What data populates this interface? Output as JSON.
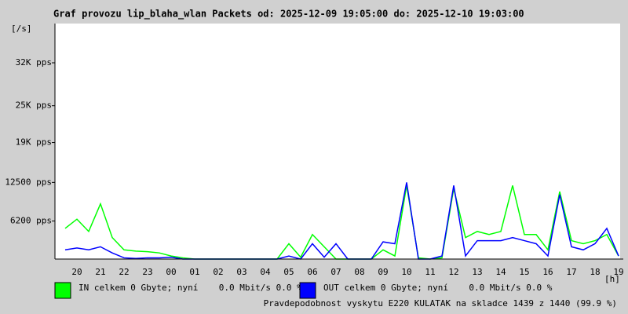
{
  "chart_data": {
    "type": "line",
    "title": "Graf provozu lip_blaha_wlan Packets od: 2025-12-09 19:05:00 do: 2025-12-10 19:03:00",
    "y_unit": "[/s]",
    "x_unit": "[h]",
    "categories": [
      null,
      "20",
      null,
      "21",
      null,
      "22",
      null,
      "23",
      null,
      "00",
      null,
      "01",
      null,
      "02",
      null,
      "03",
      null,
      "04",
      null,
      "05",
      null,
      "06",
      null,
      "07",
      null,
      "08",
      null,
      "09",
      null,
      "10",
      null,
      "11",
      null,
      "12",
      null,
      "13",
      null,
      "14",
      null,
      "15",
      null,
      "16",
      null,
      "17",
      null,
      "18",
      null,
      "19"
    ],
    "series": [
      {
        "name": "IN celkem 0 Gbyte; nyní    0.0 Mbit/s 0.0 %",
        "color": "#00ff00",
        "values": [
          5000,
          6500,
          4500,
          9000,
          3500,
          1500,
          1300,
          1200,
          1000,
          500,
          200,
          0,
          0,
          0,
          0,
          0,
          0,
          0,
          0,
          2500,
          300,
          4000,
          2000,
          0,
          0,
          0,
          0,
          1500,
          500,
          12000,
          200,
          0,
          200,
          11500,
          3500,
          4500,
          4000,
          4500,
          12000,
          4000,
          4000,
          1500,
          11000,
          3000,
          2500,
          3000,
          4000,
          500
        ]
      },
      {
        "name": "OUT celkem 0 Gbyte; nyní    0.0 Mbit/s 0.0 %",
        "color": "#0000ff",
        "values": [
          1500,
          1800,
          1500,
          2000,
          1000,
          200,
          100,
          200,
          200,
          300,
          0,
          0,
          0,
          0,
          0,
          0,
          0,
          0,
          0,
          500,
          0,
          2500,
          300,
          2500,
          0,
          0,
          0,
          2800,
          2500,
          12500,
          0,
          0,
          500,
          12000,
          500,
          3000,
          3000,
          3000,
          3500,
          3000,
          2500,
          500,
          10500,
          2000,
          1500,
          2500,
          5000,
          500
        ]
      }
    ],
    "ylim": [
      0,
      38400
    ],
    "yticks": [
      {
        "value": 6200,
        "label": "6200 pps"
      },
      {
        "value": 12500,
        "label": "12500 pps"
      },
      {
        "value": 19000,
        "label": "19K pps"
      },
      {
        "value": 25000,
        "label": "25K pps"
      },
      {
        "value": 32000,
        "label": "32K pps"
      }
    ],
    "note": "Pravdepodobnost vyskytu E220 KULATAK na skladce 1439 z 1440 (99.9 %)",
    "note_color": "#ff0000"
  }
}
